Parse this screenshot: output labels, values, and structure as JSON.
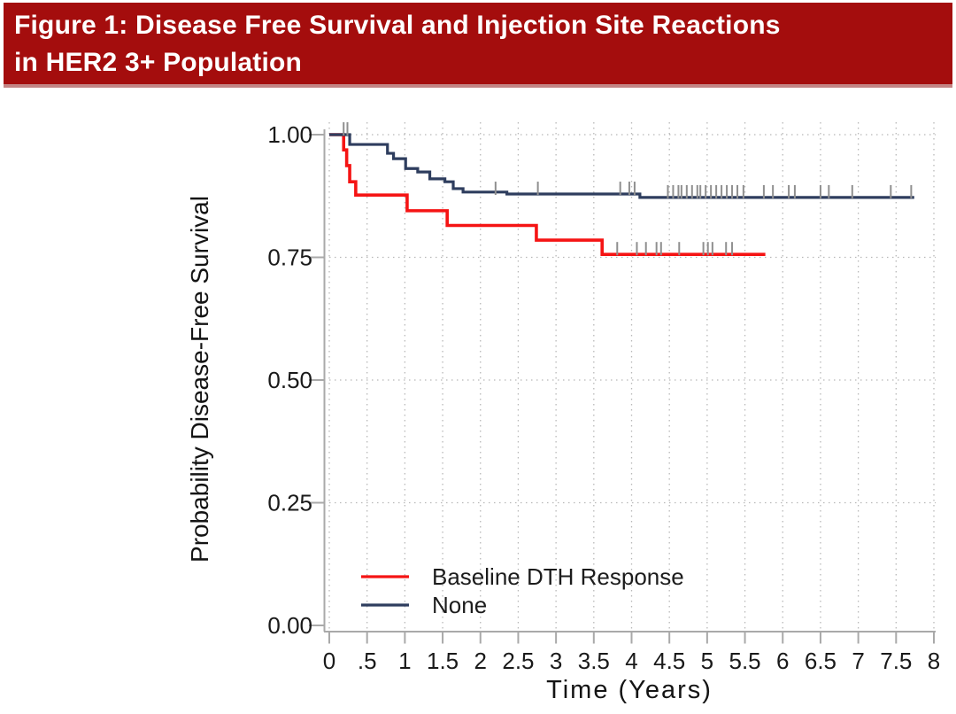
{
  "title": {
    "line1": "Figure 1: Disease Free Survival and Injection Site Reactions",
    "line2": "in HER2 3+ Population"
  },
  "colors": {
    "banner_bg": "#a40d0d",
    "banner_text": "#ffffff",
    "axis": "#a9a9a9",
    "grid": "#b8b8b8",
    "tick_text": "#1a1a1a",
    "censor_mark": "#8f8f8f"
  },
  "chart_data": {
    "type": "line",
    "subtype": "kaplan-meier-step",
    "title": "Figure 1: Disease Free Survival and Injection Site Reactions in HER2 3+ Population",
    "xlabel": "Time (Years)",
    "ylabel": "Probability Disease-Free Survival",
    "xlim": [
      0,
      8
    ],
    "ylim": [
      0.0,
      1.0
    ],
    "grid": "dotted",
    "legend_position": "inside-lower-left",
    "xticks": {
      "values": [
        0,
        0.5,
        1,
        1.5,
        2,
        2.5,
        3,
        3.5,
        4,
        4.5,
        5,
        5.5,
        6,
        6.5,
        7,
        7.5,
        8
      ],
      "labels": [
        "0",
        ".5",
        "1",
        "1.5",
        "2",
        "2.5",
        "3",
        "3.5",
        "4",
        "4.5",
        "5",
        "5.5",
        "6",
        "6.5",
        "7",
        "7.5",
        "8"
      ]
    },
    "yticks": {
      "values": [
        1.0,
        0.75,
        0.5,
        0.25,
        0.0
      ],
      "labels": [
        "1.00",
        "0.75",
        "0.50",
        "0.25",
        "0.00"
      ]
    },
    "series": [
      {
        "name": "Baseline DTH Response",
        "color": "#f51414",
        "steps": [
          [
            0,
            1.0
          ],
          [
            0.19,
            0.969
          ],
          [
            0.23,
            0.937
          ],
          [
            0.27,
            0.904
          ],
          [
            0.35,
            0.877
          ],
          [
            1.03,
            0.845
          ],
          [
            1.56,
            0.815
          ],
          [
            2.74,
            0.785
          ],
          [
            3.61,
            0.756
          ],
          [
            5.77,
            0.756
          ]
        ],
        "censor_marks": [
          [
            3.81,
            0.756
          ],
          [
            4.07,
            0.756
          ],
          [
            4.19,
            0.756
          ],
          [
            4.33,
            0.756
          ],
          [
            4.39,
            0.756
          ],
          [
            4.63,
            0.756
          ],
          [
            4.95,
            0.756
          ],
          [
            5.01,
            0.756
          ],
          [
            5.07,
            0.756
          ],
          [
            5.25,
            0.756
          ],
          [
            5.33,
            0.756
          ]
        ]
      },
      {
        "name": "None",
        "color": "#2e3d5e",
        "steps": [
          [
            0,
            1.0
          ],
          [
            0.27,
            0.98
          ],
          [
            0.77,
            0.962
          ],
          [
            0.85,
            0.951
          ],
          [
            1.01,
            0.931
          ],
          [
            1.17,
            0.924
          ],
          [
            1.33,
            0.91
          ],
          [
            1.53,
            0.904
          ],
          [
            1.64,
            0.89
          ],
          [
            1.77,
            0.883
          ],
          [
            2.35,
            0.879
          ],
          [
            4.11,
            0.872
          ],
          [
            7.74,
            0.872
          ]
        ],
        "censor_marks": [
          [
            0.19,
            1.0
          ],
          [
            0.24,
            1.0
          ],
          [
            2.2,
            0.879
          ],
          [
            2.76,
            0.879
          ],
          [
            3.85,
            0.879
          ],
          [
            3.97,
            0.879
          ],
          [
            4.04,
            0.879
          ],
          [
            4.48,
            0.872
          ],
          [
            4.55,
            0.872
          ],
          [
            4.62,
            0.872
          ],
          [
            4.66,
            0.872
          ],
          [
            4.73,
            0.872
          ],
          [
            4.8,
            0.872
          ],
          [
            4.87,
            0.872
          ],
          [
            4.91,
            0.872
          ],
          [
            4.98,
            0.872
          ],
          [
            5.05,
            0.872
          ],
          [
            5.12,
            0.872
          ],
          [
            5.19,
            0.872
          ],
          [
            5.26,
            0.872
          ],
          [
            5.33,
            0.872
          ],
          [
            5.4,
            0.872
          ],
          [
            5.48,
            0.872
          ],
          [
            5.75,
            0.872
          ],
          [
            5.87,
            0.872
          ],
          [
            6.08,
            0.872
          ],
          [
            6.16,
            0.872
          ],
          [
            6.5,
            0.872
          ],
          [
            6.61,
            0.872
          ],
          [
            6.92,
            0.872
          ],
          [
            7.43,
            0.872
          ],
          [
            7.7,
            0.872
          ]
        ]
      }
    ]
  }
}
